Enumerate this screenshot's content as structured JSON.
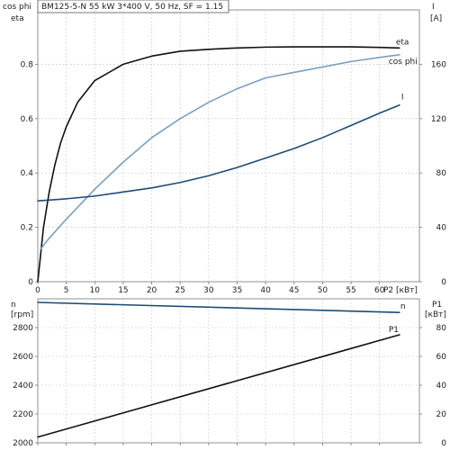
{
  "colors": {
    "eta": "#111111",
    "cos_phi": "#7b9fc0",
    "I": "#1f4b75",
    "n": "#1f4b75",
    "P1": "#111111"
  },
  "chart_data": [
    {
      "type": "line",
      "panel": "top",
      "title": "BM125-5-N   55 kW   3*400 V, 50 Hz, SF = 1.15",
      "xlabel": "P2 [кВт]",
      "xlim": [
        0,
        67
      ],
      "xticks": [
        0,
        5,
        10,
        15,
        20,
        25,
        30,
        35,
        40,
        45,
        50,
        55,
        60
      ],
      "left_axis": {
        "label_lines": [
          "cos phi",
          "eta"
        ],
        "ylim": [
          0,
          1.0
        ],
        "ticks": [
          0,
          0.2,
          0.4,
          0.6,
          0.8
        ],
        "tick_labels": [
          "0",
          "0.2",
          "0.4",
          "0.6",
          "0.8"
        ]
      },
      "right_axis": {
        "label_lines": [
          "I",
          "[A]"
        ],
        "ylim": [
          0,
          200
        ],
        "ticks": [
          0,
          40,
          80,
          120,
          160
        ],
        "tick_labels": [
          "0",
          "40",
          "80",
          "120",
          "160"
        ]
      },
      "grid": true,
      "series": [
        {
          "name": "eta",
          "axis": "left",
          "x": [
            0,
            1,
            2,
            3,
            4,
            5,
            7,
            10,
            15,
            20,
            25,
            30,
            35,
            40,
            45,
            50,
            55,
            60,
            63.5
          ],
          "y": [
            0.0,
            0.2,
            0.33,
            0.43,
            0.51,
            0.57,
            0.66,
            0.74,
            0.8,
            0.83,
            0.848,
            0.855,
            0.86,
            0.863,
            0.864,
            0.864,
            0.864,
            0.862,
            0.86
          ]
        },
        {
          "name": "cos phi",
          "axis": "left",
          "x": [
            0.5,
            2,
            5,
            10,
            15,
            20,
            25,
            30,
            35,
            40,
            45,
            50,
            55,
            60,
            63.5
          ],
          "y": [
            0.12,
            0.16,
            0.23,
            0.34,
            0.44,
            0.53,
            0.6,
            0.66,
            0.71,
            0.75,
            0.77,
            0.79,
            0.81,
            0.825,
            0.835
          ]
        },
        {
          "name": "I",
          "axis": "right",
          "x": [
            0,
            5,
            10,
            15,
            20,
            25,
            30,
            35,
            40,
            45,
            50,
            55,
            60,
            63.5
          ],
          "y": [
            59.5,
            61,
            63,
            66,
            69,
            73,
            78,
            84,
            91,
            98,
            106,
            115,
            124,
            130
          ]
        }
      ]
    },
    {
      "type": "line",
      "panel": "bottom",
      "xlim": [
        0,
        67
      ],
      "xticks": [
        0,
        5,
        10,
        15,
        20,
        25,
        30,
        35,
        40,
        45,
        50,
        55,
        60
      ],
      "left_axis": {
        "label_lines": [
          "n",
          "[rpm]"
        ],
        "ylim": [
          2000,
          3000
        ],
        "ticks": [
          2000,
          2200,
          2400,
          2600,
          2800
        ],
        "tick_labels": [
          "2000",
          "2200",
          "2400",
          "2600",
          "2800"
        ]
      },
      "right_axis": {
        "label_lines": [
          "P1",
          "[кВт]"
        ],
        "ylim": [
          0,
          100
        ],
        "ticks": [
          0,
          20,
          40,
          60,
          80
        ],
        "tick_labels": [
          "0",
          "20",
          "40",
          "60",
          "80"
        ]
      },
      "grid": true,
      "series": [
        {
          "name": "n",
          "axis": "left",
          "x": [
            0,
            63.5
          ],
          "y": [
            2975,
            2905
          ]
        },
        {
          "name": "P1",
          "axis": "right",
          "x": [
            0,
            63.5
          ],
          "y": [
            4,
            75
          ]
        }
      ]
    }
  ]
}
